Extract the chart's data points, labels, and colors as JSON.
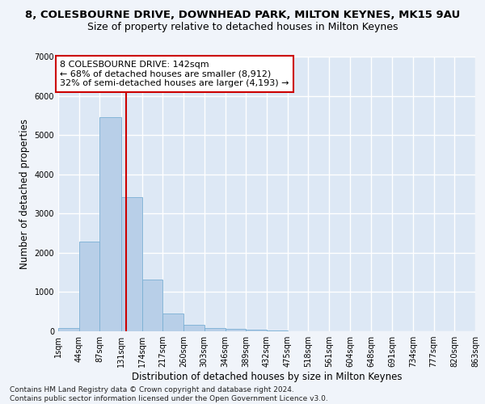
{
  "title": "8, COLESBOURNE DRIVE, DOWNHEAD PARK, MILTON KEYNES, MK15 9AU",
  "subtitle": "Size of property relative to detached houses in Milton Keynes",
  "xlabel": "Distribution of detached houses by size in Milton Keynes",
  "ylabel": "Number of detached properties",
  "bar_color": "#b8cfe8",
  "bar_edge_color": "#7aafd4",
  "background_color": "#dde8f5",
  "fig_background_color": "#f0f4fa",
  "grid_color": "#ffffff",
  "annotation_text": "8 COLESBOURNE DRIVE: 142sqm\n← 68% of detached houses are smaller (8,912)\n32% of semi-detached houses are larger (4,193) →",
  "annotation_box_color": "#ffffff",
  "annotation_edge_color": "#cc0000",
  "red_line_color": "#cc0000",
  "property_sqm": 142,
  "bin_edges": [
    1,
    44,
    87,
    131,
    174,
    217,
    260,
    303,
    346,
    389,
    432,
    475,
    518,
    561,
    604,
    648,
    691,
    734,
    777,
    820,
    863
  ],
  "bar_heights": [
    75,
    2280,
    5460,
    3420,
    1310,
    460,
    165,
    90,
    55,
    35,
    15,
    10,
    5,
    3,
    2,
    1,
    1,
    0,
    0,
    0
  ],
  "ylim": [
    0,
    7000
  ],
  "yticks": [
    0,
    1000,
    2000,
    3000,
    4000,
    5000,
    6000,
    7000
  ],
  "footer_text": "Contains HM Land Registry data © Crown copyright and database right 2024.\nContains public sector information licensed under the Open Government Licence v3.0.",
  "title_fontsize": 9.5,
  "subtitle_fontsize": 9,
  "tick_label_fontsize": 7,
  "ylabel_fontsize": 8.5,
  "xlabel_fontsize": 8.5,
  "annotation_fontsize": 8,
  "footer_fontsize": 6.5
}
